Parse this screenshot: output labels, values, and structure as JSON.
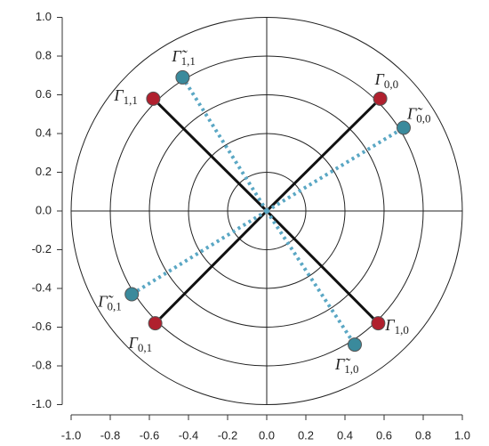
{
  "chart_data": {
    "type": "scatter",
    "xlim": [
      -1.0,
      1.0
    ],
    "ylim": [
      -1.0,
      1.0
    ],
    "xticks": [
      {
        "value": -1.0,
        "label": "-1.0"
      },
      -0.8,
      -0.6,
      -0.4,
      -0.2,
      {
        "value": 0,
        "label": "0.0"
      },
      0.2,
      0.4,
      0.6,
      0.8,
      {
        "value": 1.0,
        "label": "1.0"
      }
    ],
    "yticks": [
      {
        "value": -1.0,
        "label": "-1.0"
      },
      -0.8,
      -0.6,
      -0.4,
      -0.2,
      {
        "value": 0,
        "label": "0.0"
      },
      0.2,
      0.4,
      0.6,
      0.8,
      {
        "value": 1.0,
        "label": "1.0"
      }
    ],
    "circles": [
      0.2,
      0.4,
      0.6,
      0.8,
      1.0
    ],
    "series": [
      {
        "color": "#b0202e",
        "line_color": "#111111",
        "line_style": "solid",
        "x": [
          0.58,
          -0.58,
          -0.57,
          0.57
        ],
        "y": [
          0.58,
          0.58,
          -0.58,
          -0.58
        ],
        "labels": [
          {
            "symbol": "Γ",
            "sub": "0,0"
          },
          {
            "symbol": "Γ",
            "sub": "1,1"
          },
          {
            "symbol": "Γ",
            "sub": "0,1"
          },
          {
            "symbol": "Γ",
            "sub": "1,0"
          }
        ]
      },
      {
        "color": "#3a8a9c",
        "line_color": "#5aa7c4",
        "line_style": "dotted",
        "x": [
          0.7,
          -0.43,
          -0.69,
          0.45
        ],
        "y": [
          0.43,
          0.69,
          -0.43,
          -0.69
        ],
        "labels": [
          {
            "symbol": "Γ̃",
            "sub": "0,0"
          },
          {
            "symbol": "Γ̃",
            "sub": "1,1"
          },
          {
            "symbol": "Γ̃",
            "sub": "0,1"
          },
          {
            "symbol": "Γ̃",
            "sub": "1,0"
          }
        ]
      }
    ]
  }
}
